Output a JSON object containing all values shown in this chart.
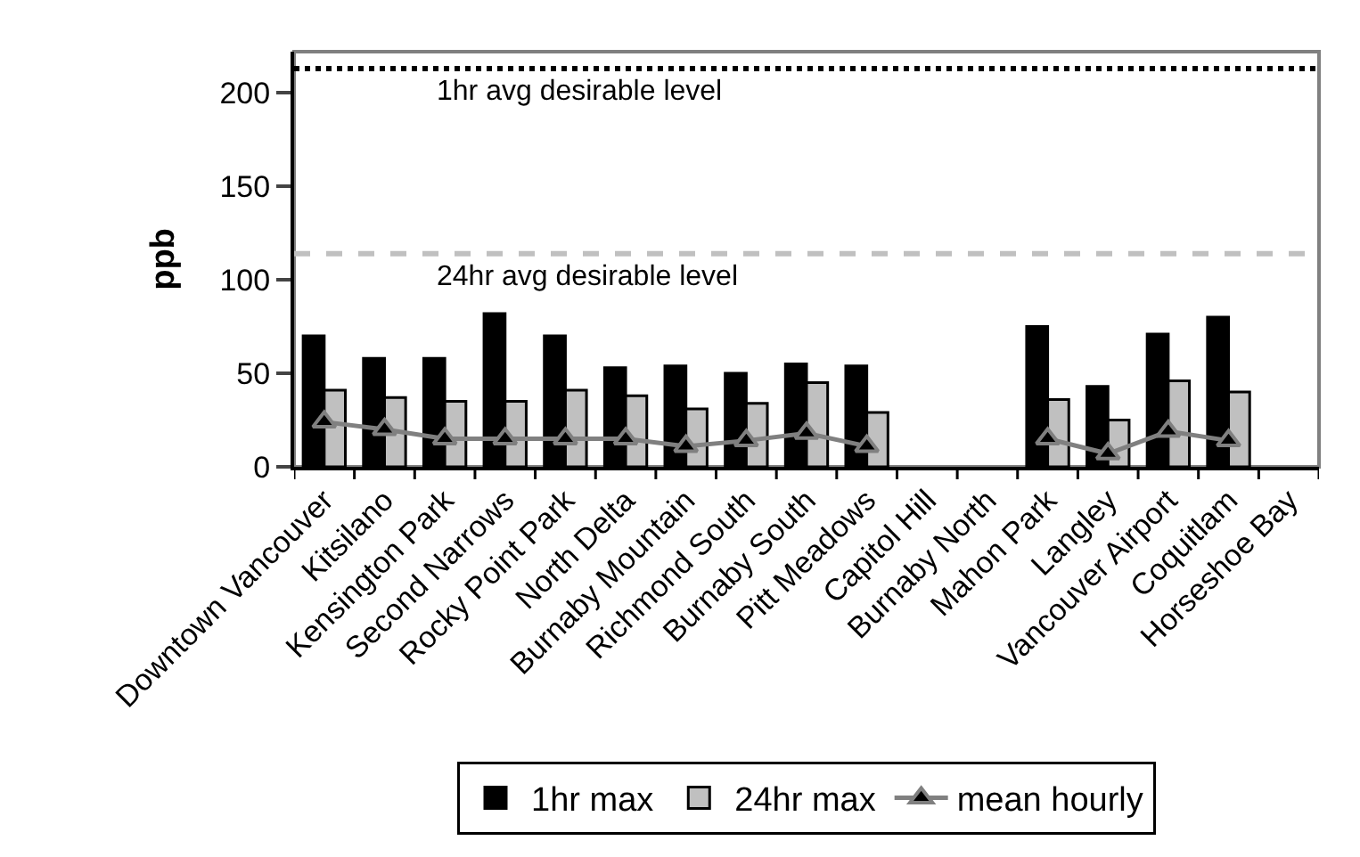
{
  "chart_data": {
    "type": "bar",
    "ylabel": "ppb",
    "categories": [
      "Downtown Vancouver",
      "Kitsilano",
      "Kensington Park",
      "Second Narrows",
      "Rocky Point Park",
      "North Delta",
      "Burnaby Mountain",
      "Richmond South",
      "Burnaby South",
      "Pitt Meadows",
      "Capitol Hill",
      "Burnaby North",
      "Mahon Park",
      "Langley",
      "Vancouver Airport",
      "Coquitlam",
      "Horseshoe Bay"
    ],
    "series": [
      {
        "name": "1hr max",
        "color": "#000000",
        "values": [
          70,
          58,
          58,
          82,
          70,
          53,
          54,
          50,
          55,
          54,
          null,
          null,
          75,
          43,
          71,
          80,
          null
        ]
      },
      {
        "name": "24hr max",
        "color": "#c0c0c0",
        "values": [
          41,
          37,
          35,
          35,
          41,
          38,
          31,
          34,
          45,
          29,
          null,
          null,
          36,
          25,
          46,
          40,
          null
        ]
      },
      {
        "name": "mean hourly",
        "type": "line",
        "color": "#808080",
        "marker": "triangle",
        "values": [
          24,
          20,
          15,
          15,
          15,
          15,
          11,
          14,
          18,
          11,
          null,
          null,
          15,
          7,
          19,
          14,
          null
        ]
      }
    ],
    "ylim": [
      0,
      222
    ],
    "yticks": [
      0,
      50,
      100,
      150,
      200
    ],
    "grid": false,
    "legend": "bottom",
    "ref_lines": [
      {
        "axis": "y",
        "value": 213,
        "label": "1hr avg desirable level",
        "color": "#000000",
        "line_style": "dotted"
      },
      {
        "axis": "y",
        "value": 114,
        "label": "24hr avg desirable level",
        "color": "#c0c0c0",
        "line_style": "dashed"
      }
    ]
  }
}
